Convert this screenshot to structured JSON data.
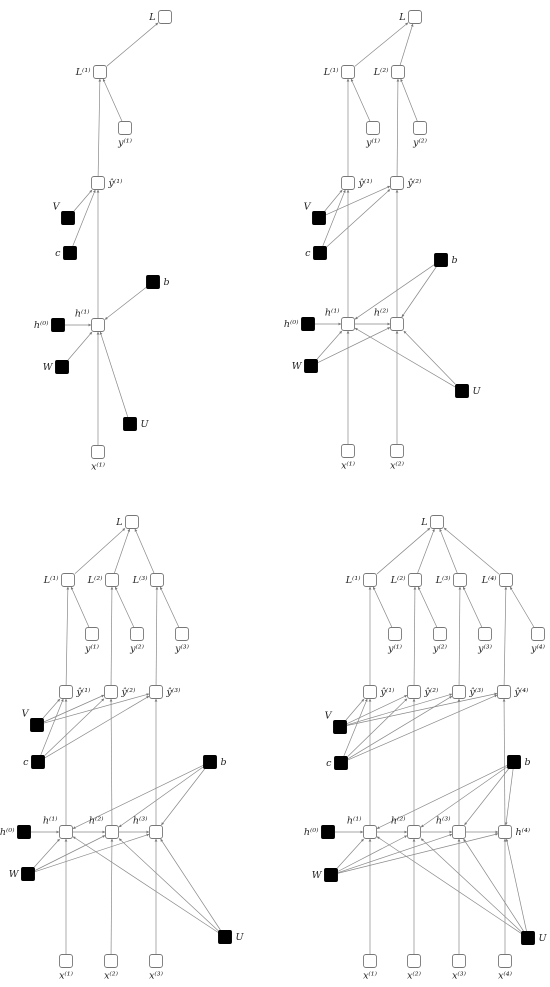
{
  "panels": [
    {
      "id": "t1",
      "nodes": {
        "L": {
          "label": "L",
          "type": "var"
        },
        "L1": {
          "label": "L⁽¹⁾",
          "type": "var"
        },
        "y1": {
          "label": "y⁽¹⁾",
          "type": "var"
        },
        "yh1": {
          "label": "ŷ⁽¹⁾",
          "type": "var"
        },
        "V": {
          "label": "V",
          "type": "param"
        },
        "c": {
          "label": "c",
          "type": "param"
        },
        "b": {
          "label": "b",
          "type": "param"
        },
        "h0": {
          "label": "h⁽⁰⁾",
          "type": "param"
        },
        "h1": {
          "label": "h⁽¹⁾",
          "type": "var"
        },
        "W": {
          "label": "W",
          "type": "param"
        },
        "U": {
          "label": "U",
          "type": "param"
        },
        "x1": {
          "label": "x⁽¹⁾",
          "type": "var"
        }
      }
    },
    {
      "id": "t2",
      "nodes": {
        "L": {
          "label": "L",
          "type": "var"
        },
        "L1": {
          "label": "L⁽¹⁾",
          "type": "var"
        },
        "L2": {
          "label": "L⁽²⁾",
          "type": "var"
        },
        "y1": {
          "label": "y⁽¹⁾",
          "type": "var"
        },
        "y2": {
          "label": "y⁽²⁾",
          "type": "var"
        },
        "yh1": {
          "label": "ŷ⁽¹⁾",
          "type": "var"
        },
        "yh2": {
          "label": "ŷ⁽²⁾",
          "type": "var"
        },
        "V": {
          "label": "V",
          "type": "param"
        },
        "c": {
          "label": "c",
          "type": "param"
        },
        "b": {
          "label": "b",
          "type": "param"
        },
        "h0": {
          "label": "h⁽⁰⁾",
          "type": "param"
        },
        "h1": {
          "label": "h⁽¹⁾",
          "type": "var"
        },
        "h2": {
          "label": "h⁽²⁾",
          "type": "var"
        },
        "W": {
          "label": "W",
          "type": "param"
        },
        "U": {
          "label": "U",
          "type": "param"
        },
        "x1": {
          "label": "x⁽¹⁾",
          "type": "var"
        },
        "x2": {
          "label": "x⁽²⁾",
          "type": "var"
        }
      }
    },
    {
      "id": "t3",
      "nodes": {
        "L": {
          "label": "L",
          "type": "var"
        },
        "L1": {
          "label": "L⁽¹⁾",
          "type": "var"
        },
        "L2": {
          "label": "L⁽²⁾",
          "type": "var"
        },
        "L3": {
          "label": "L⁽³⁾",
          "type": "var"
        },
        "y1": {
          "label": "y⁽¹⁾",
          "type": "var"
        },
        "y2": {
          "label": "y⁽²⁾",
          "type": "var"
        },
        "y3": {
          "label": "y⁽³⁾",
          "type": "var"
        },
        "yh1": {
          "label": "ŷ⁽¹⁾",
          "type": "var"
        },
        "yh2": {
          "label": "ŷ⁽²⁾",
          "type": "var"
        },
        "yh3": {
          "label": "ŷ⁽³⁾",
          "type": "var"
        },
        "V": {
          "label": "V",
          "type": "param"
        },
        "c": {
          "label": "c",
          "type": "param"
        },
        "b": {
          "label": "b",
          "type": "param"
        },
        "h0": {
          "label": "h⁽⁰⁾",
          "type": "param"
        },
        "h1": {
          "label": "h⁽¹⁾",
          "type": "var"
        },
        "h2": {
          "label": "h⁽²⁾",
          "type": "var"
        },
        "h3": {
          "label": "h⁽³⁾",
          "type": "var"
        },
        "W": {
          "label": "W",
          "type": "param"
        },
        "U": {
          "label": "U",
          "type": "param"
        },
        "x1": {
          "label": "x⁽¹⁾",
          "type": "var"
        },
        "x2": {
          "label": "x⁽²⁾",
          "type": "var"
        },
        "x3": {
          "label": "x⁽³⁾",
          "type": "var"
        }
      }
    },
    {
      "id": "t4",
      "nodes": {
        "L": {
          "label": "L",
          "type": "var"
        },
        "L1": {
          "label": "L⁽¹⁾",
          "type": "var"
        },
        "L2": {
          "label": "L⁽²⁾",
          "type": "var"
        },
        "L3": {
          "label": "L⁽³⁾",
          "type": "var"
        },
        "L4": {
          "label": "L⁽⁴⁾",
          "type": "var"
        },
        "y1": {
          "label": "y⁽¹⁾",
          "type": "var"
        },
        "y2": {
          "label": "y⁽²⁾",
          "type": "var"
        },
        "y3": {
          "label": "y⁽³⁾",
          "type": "var"
        },
        "y4": {
          "label": "y⁽⁴⁾",
          "type": "var"
        },
        "yh1": {
          "label": "ŷ⁽¹⁾",
          "type": "var"
        },
        "yh2": {
          "label": "ŷ⁽²⁾",
          "type": "var"
        },
        "yh3": {
          "label": "ŷ⁽³⁾",
          "type": "var"
        },
        "yh4": {
          "label": "ŷ⁽⁴⁾",
          "type": "var"
        },
        "V": {
          "label": "V",
          "type": "param"
        },
        "c": {
          "label": "c",
          "type": "param"
        },
        "b": {
          "label": "b",
          "type": "param"
        },
        "h0": {
          "label": "h⁽⁰⁾",
          "type": "param"
        },
        "h1": {
          "label": "h⁽¹⁾",
          "type": "var"
        },
        "h2": {
          "label": "h⁽²⁾",
          "type": "var"
        },
        "h3": {
          "label": "h⁽³⁾",
          "type": "var"
        },
        "h4": {
          "label": "h⁽⁴⁾",
          "type": "var"
        },
        "W": {
          "label": "W",
          "type": "param"
        },
        "U": {
          "label": "U",
          "type": "param"
        },
        "x1": {
          "label": "x⁽¹⁾",
          "type": "var"
        },
        "x2": {
          "label": "x⁽²⁾",
          "type": "var"
        },
        "x3": {
          "label": "x⁽³⁾",
          "type": "var"
        },
        "x4": {
          "label": "x⁽⁴⁾",
          "type": "var"
        }
      }
    }
  ],
  "edges": [
    [
      "t1",
      "L1",
      "L"
    ],
    [
      "t1",
      "y1",
      "L1"
    ],
    [
      "t1",
      "yh1",
      "L1"
    ],
    [
      "t1",
      "V",
      "yh1"
    ],
    [
      "t1",
      "c",
      "yh1"
    ],
    [
      "t1",
      "h1",
      "yh1"
    ],
    [
      "t1",
      "b",
      "h1"
    ],
    [
      "t1",
      "h0",
      "h1"
    ],
    [
      "t1",
      "W",
      "h1"
    ],
    [
      "t1",
      "U",
      "h1"
    ],
    [
      "t1",
      "x1",
      "h1"
    ],
    [
      "t2",
      "L1",
      "L"
    ],
    [
      "t2",
      "L2",
      "L"
    ],
    [
      "t2",
      "y1",
      "L1"
    ],
    [
      "t2",
      "y2",
      "L2"
    ],
    [
      "t2",
      "yh1",
      "L1"
    ],
    [
      "t2",
      "yh2",
      "L2"
    ],
    [
      "t2",
      "V",
      "yh1"
    ],
    [
      "t2",
      "V",
      "yh2"
    ],
    [
      "t2",
      "c",
      "yh1"
    ],
    [
      "t2",
      "c",
      "yh2"
    ],
    [
      "t2",
      "h1",
      "yh1"
    ],
    [
      "t2",
      "h2",
      "yh2"
    ],
    [
      "t2",
      "b",
      "h1"
    ],
    [
      "t2",
      "b",
      "h2"
    ],
    [
      "t2",
      "h0",
      "h1"
    ],
    [
      "t2",
      "h1",
      "h2"
    ],
    [
      "t2",
      "W",
      "h1"
    ],
    [
      "t2",
      "W",
      "h2"
    ],
    [
      "t2",
      "U",
      "h1"
    ],
    [
      "t2",
      "U",
      "h2"
    ],
    [
      "t2",
      "x1",
      "h1"
    ],
    [
      "t2",
      "x2",
      "h2"
    ],
    [
      "t3",
      "L1",
      "L"
    ],
    [
      "t3",
      "L2",
      "L"
    ],
    [
      "t3",
      "L3",
      "L"
    ],
    [
      "t3",
      "y1",
      "L1"
    ],
    [
      "t3",
      "y2",
      "L2"
    ],
    [
      "t3",
      "y3",
      "L3"
    ],
    [
      "t3",
      "yh1",
      "L1"
    ],
    [
      "t3",
      "yh2",
      "L2"
    ],
    [
      "t3",
      "yh3",
      "L3"
    ],
    [
      "t3",
      "V",
      "yh1"
    ],
    [
      "t3",
      "V",
      "yh2"
    ],
    [
      "t3",
      "V",
      "yh3"
    ],
    [
      "t3",
      "c",
      "yh1"
    ],
    [
      "t3",
      "c",
      "yh2"
    ],
    [
      "t3",
      "c",
      "yh3"
    ],
    [
      "t3",
      "h1",
      "yh1"
    ],
    [
      "t3",
      "h2",
      "yh2"
    ],
    [
      "t3",
      "h3",
      "yh3"
    ],
    [
      "t3",
      "b",
      "h1"
    ],
    [
      "t3",
      "b",
      "h2"
    ],
    [
      "t3",
      "b",
      "h3"
    ],
    [
      "t3",
      "h0",
      "h1"
    ],
    [
      "t3",
      "h1",
      "h2"
    ],
    [
      "t3",
      "h2",
      "h3"
    ],
    [
      "t3",
      "W",
      "h1"
    ],
    [
      "t3",
      "W",
      "h2"
    ],
    [
      "t3",
      "W",
      "h3"
    ],
    [
      "t3",
      "U",
      "h1"
    ],
    [
      "t3",
      "U",
      "h2"
    ],
    [
      "t3",
      "U",
      "h3"
    ],
    [
      "t3",
      "x1",
      "h1"
    ],
    [
      "t3",
      "x2",
      "h2"
    ],
    [
      "t3",
      "x3",
      "h3"
    ],
    [
      "t4",
      "L1",
      "L"
    ],
    [
      "t4",
      "L2",
      "L"
    ],
    [
      "t4",
      "L3",
      "L"
    ],
    [
      "t4",
      "L4",
      "L"
    ],
    [
      "t4",
      "y1",
      "L1"
    ],
    [
      "t4",
      "y2",
      "L2"
    ],
    [
      "t4",
      "y3",
      "L3"
    ],
    [
      "t4",
      "y4",
      "L4"
    ],
    [
      "t4",
      "yh1",
      "L1"
    ],
    [
      "t4",
      "yh2",
      "L2"
    ],
    [
      "t4",
      "yh3",
      "L3"
    ],
    [
      "t4",
      "yh4",
      "L4"
    ],
    [
      "t4",
      "V",
      "yh1"
    ],
    [
      "t4",
      "V",
      "yh2"
    ],
    [
      "t4",
      "V",
      "yh3"
    ],
    [
      "t4",
      "V",
      "yh4"
    ],
    [
      "t4",
      "c",
      "yh1"
    ],
    [
      "t4",
      "c",
      "yh2"
    ],
    [
      "t4",
      "c",
      "yh3"
    ],
    [
      "t4",
      "c",
      "yh4"
    ],
    [
      "t4",
      "h1",
      "yh1"
    ],
    [
      "t4",
      "h2",
      "yh2"
    ],
    [
      "t4",
      "h3",
      "yh3"
    ],
    [
      "t4",
      "h4",
      "yh4"
    ],
    [
      "t4",
      "b",
      "h1"
    ],
    [
      "t4",
      "b",
      "h2"
    ],
    [
      "t4",
      "b",
      "h3"
    ],
    [
      "t4",
      "b",
      "h4"
    ],
    [
      "t4",
      "h0",
      "h1"
    ],
    [
      "t4",
      "h1",
      "h2"
    ],
    [
      "t4",
      "h2",
      "h3"
    ],
    [
      "t4",
      "h3",
      "h4"
    ],
    [
      "t4",
      "W",
      "h1"
    ],
    [
      "t4",
      "W",
      "h2"
    ],
    [
      "t4",
      "W",
      "h3"
    ],
    [
      "t4",
      "W",
      "h4"
    ],
    [
      "t4",
      "U",
      "h1"
    ],
    [
      "t4",
      "U",
      "h2"
    ],
    [
      "t4",
      "U",
      "h3"
    ],
    [
      "t4",
      "U",
      "h4"
    ],
    [
      "t4",
      "x1",
      "h1"
    ],
    [
      "t4",
      "x2",
      "h2"
    ],
    [
      "t4",
      "x3",
      "h3"
    ],
    [
      "t4",
      "x4",
      "h4"
    ]
  ]
}
